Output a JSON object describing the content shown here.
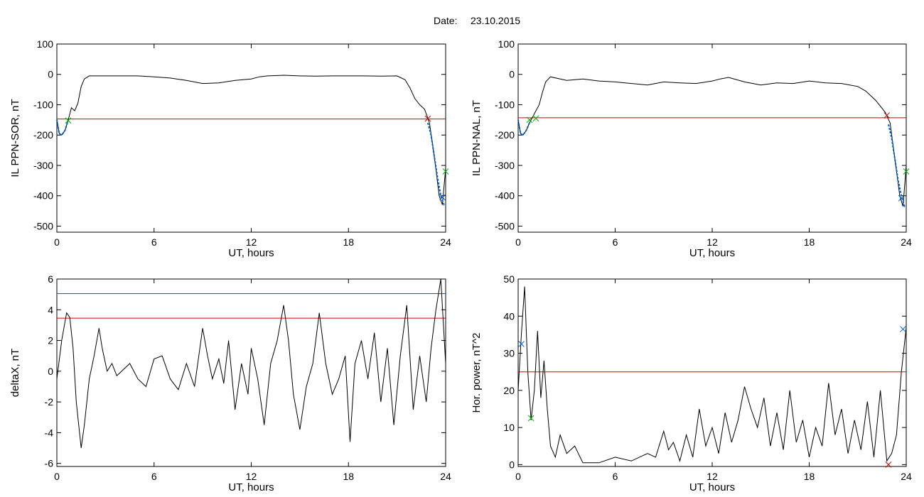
{
  "header": {
    "date_label": "Date:",
    "date_value": "23.10.2015"
  },
  "chart_data": [
    {
      "id": "ppn-sor",
      "type": "line",
      "xlabel": "UT, hours",
      "ylabel": "IL PPN-SOR, nT",
      "xlim": [
        0,
        24
      ],
      "ylim": [
        -520,
        100
      ],
      "xticks": [
        0,
        6,
        12,
        18,
        24
      ],
      "yticks": [
        100,
        0,
        -100,
        -200,
        -300,
        -400,
        -500
      ],
      "grid": false,
      "series_color": "#000000",
      "x": [
        0,
        0.15,
        0.3,
        0.5,
        0.7,
        0.9,
        1.1,
        1.3,
        1.5,
        1.7,
        2,
        3,
        4,
        5,
        6,
        7,
        8,
        9,
        10,
        11,
        12,
        12.5,
        13,
        14,
        15,
        16,
        17,
        18,
        19,
        20,
        21,
        21.5,
        21.8,
        22.1,
        22.4,
        22.7,
        23,
        23.3,
        23.6,
        23.8,
        24
      ],
      "values": [
        -150,
        -195,
        -200,
        -185,
        -150,
        -110,
        -120,
        -95,
        -40,
        -15,
        -5,
        -5,
        -5,
        -5,
        -8,
        -12,
        -20,
        -30,
        -28,
        -20,
        -15,
        -8,
        -5,
        -3,
        -5,
        -6,
        -5,
        -5,
        -5,
        -6,
        -5,
        -18,
        -45,
        -80,
        -100,
        -115,
        -160,
        -270,
        -400,
        -430,
        -310
      ],
      "hlines": [
        {
          "y": -147,
          "color": "#d00000"
        }
      ],
      "overlay": {
        "color": "#0060d0",
        "x": [
          0,
          0.15,
          0.3,
          0.5,
          0.7
        ],
        "values": [
          -150,
          -195,
          -200,
          -185,
          -150
        ]
      },
      "overlay2": {
        "color": "#0060d0",
        "x": [
          22.9,
          23.1,
          23.3,
          23.5,
          23.7,
          23.9,
          24
        ],
        "values": [
          -160,
          -200,
          -270,
          -340,
          -400,
          -430,
          -430
        ]
      },
      "markers": [
        {
          "x": 0.7,
          "y": -152,
          "color": "#00b000"
        },
        {
          "x": 22.9,
          "y": -146,
          "color": "#d00000"
        },
        {
          "x": 23.8,
          "y": -405,
          "color": "#0060d0"
        },
        {
          "x": 24,
          "y": -320,
          "color": "#00b000"
        }
      ]
    },
    {
      "id": "ppn-nal",
      "type": "line",
      "xlabel": "UT, hours",
      "ylabel": "IL PPN-NAL, nT",
      "xlim": [
        0,
        24
      ],
      "ylim": [
        -520,
        100
      ],
      "xticks": [
        0,
        6,
        12,
        18,
        24
      ],
      "yticks": [
        100,
        0,
        -100,
        -200,
        -300,
        -400,
        -500
      ],
      "grid": false,
      "series_color": "#000000",
      "x": [
        0,
        0.15,
        0.3,
        0.5,
        0.7,
        0.9,
        1.1,
        1.3,
        1.5,
        1.7,
        2,
        3,
        4,
        5,
        6,
        7,
        8,
        9,
        10,
        11,
        12,
        12.5,
        13,
        14,
        15,
        16,
        17,
        18,
        19,
        20,
        21,
        21.5,
        21.8,
        22.1,
        22.4,
        22.7,
        23,
        23.3,
        23.6,
        23.8,
        24
      ],
      "values": [
        -150,
        -195,
        -200,
        -185,
        -160,
        -140,
        -120,
        -100,
        -60,
        -25,
        -8,
        -20,
        -15,
        -22,
        -25,
        -30,
        -35,
        -25,
        -28,
        -30,
        -22,
        -15,
        -10,
        -25,
        -35,
        -28,
        -30,
        -22,
        -28,
        -30,
        -40,
        -55,
        -70,
        -85,
        -105,
        -125,
        -160,
        -280,
        -400,
        -435,
        -300
      ],
      "hlines": [
        {
          "y": -143,
          "color": "#d00000"
        }
      ],
      "overlay": {
        "color": "#0060d0",
        "x": [
          0,
          0.15,
          0.3,
          0.5,
          0.7
        ],
        "values": [
          -150,
          -195,
          -200,
          -185,
          -160
        ]
      },
      "overlay2": {
        "color": "#0060d0",
        "x": [
          22.9,
          23.1,
          23.3,
          23.5,
          23.7,
          23.9,
          24
        ],
        "values": [
          -165,
          -210,
          -280,
          -350,
          -400,
          -435,
          -435
        ]
      },
      "markers": [
        {
          "x": 0.7,
          "y": -150,
          "color": "#00b000"
        },
        {
          "x": 1.1,
          "y": -145,
          "color": "#00b000"
        },
        {
          "x": 22.8,
          "y": -135,
          "color": "#d00000"
        },
        {
          "x": 23.7,
          "y": -408,
          "color": "#0060d0"
        },
        {
          "x": 24,
          "y": -320,
          "color": "#00b000"
        }
      ]
    },
    {
      "id": "deltax",
      "type": "line",
      "xlabel": "UT, hours",
      "ylabel": "deltaX, nT",
      "xlim": [
        0,
        24
      ],
      "ylim": [
        -6.2,
        6
      ],
      "xticks": [
        0,
        6,
        12,
        18,
        24
      ],
      "yticks": [
        6,
        4,
        2,
        0,
        -2,
        -4,
        -6
      ],
      "grid": false,
      "series_color": "#000000",
      "x": [
        0,
        0.3,
        0.6,
        0.8,
        1.0,
        1.2,
        1.5,
        1.7,
        2.0,
        2.3,
        2.6,
        2.8,
        3.1,
        3.4,
        3.7,
        4.0,
        4.5,
        5.0,
        5.5,
        6.0,
        6.5,
        7.0,
        7.5,
        8.0,
        8.5,
        9.0,
        9.3,
        9.6,
        10.0,
        10.3,
        10.6,
        11.0,
        11.4,
        11.8,
        12.0,
        12.4,
        12.8,
        13.2,
        13.6,
        14.0,
        14.3,
        14.6,
        15.0,
        15.4,
        15.8,
        16.2,
        16.6,
        17.0,
        17.4,
        17.8,
        18.1,
        18.4,
        18.8,
        19.2,
        19.6,
        20.0,
        20.4,
        20.8,
        21.2,
        21.6,
        22.0,
        22.4,
        22.8,
        23.1,
        23.4,
        23.7,
        24.0
      ],
      "values": [
        -0.5,
        2.0,
        3.8,
        3.5,
        1.5,
        -2.0,
        -5.0,
        -3.5,
        -0.5,
        1.0,
        2.8,
        1.5,
        0.0,
        0.5,
        -0.3,
        0.0,
        0.5,
        -0.5,
        -1.0,
        0.8,
        1.0,
        -0.5,
        -1.2,
        0.5,
        -1.0,
        2.8,
        1.0,
        -0.5,
        0.8,
        -0.8,
        2.0,
        -2.5,
        0.5,
        -1.5,
        1.5,
        -0.5,
        -3.5,
        0.5,
        2.0,
        4.3,
        2.0,
        -1.5,
        -3.8,
        -1.0,
        0.5,
        3.8,
        0.5,
        -1.5,
        -0.5,
        1.0,
        -4.6,
        0.5,
        2.0,
        -0.5,
        2.5,
        -2.0,
        1.5,
        -3.5,
        1.0,
        4.3,
        -2.5,
        1.0,
        -2.0,
        1.5,
        4.0,
        6.0,
        0.5
      ],
      "hlines": [
        {
          "y": 5.05,
          "color": "#0060d0"
        },
        {
          "y": 3.45,
          "color": "#d00000"
        }
      ],
      "markers": []
    },
    {
      "id": "hor-power",
      "type": "line",
      "xlabel": "UT, hours",
      "ylabel": "Hor. power, nT^2",
      "xlim": [
        0,
        24
      ],
      "ylim": [
        -0.5,
        50
      ],
      "xticks": [
        0,
        6,
        12,
        18,
        24
      ],
      "yticks": [
        50,
        40,
        30,
        20,
        10,
        0
      ],
      "grid": false,
      "series_color": "#000000",
      "x": [
        0,
        0.2,
        0.4,
        0.6,
        0.8,
        1.0,
        1.2,
        1.4,
        1.6,
        1.8,
        2.0,
        2.3,
        2.6,
        3.0,
        3.5,
        4.0,
        5.0,
        6.0,
        7.0,
        8.0,
        8.5,
        9.0,
        9.3,
        9.6,
        10.0,
        10.4,
        10.8,
        11.2,
        11.6,
        12.0,
        12.4,
        12.8,
        13.2,
        13.6,
        14.0,
        14.4,
        14.8,
        15.2,
        15.6,
        16.0,
        16.4,
        16.8,
        17.2,
        17.6,
        18.0,
        18.4,
        18.8,
        19.2,
        19.6,
        20.0,
        20.4,
        20.8,
        21.2,
        21.6,
        22.0,
        22.4,
        22.8,
        23.1,
        23.4,
        23.7,
        24.0
      ],
      "values": [
        20,
        35,
        48,
        25,
        12,
        20,
        36,
        18,
        28,
        15,
        5,
        2,
        8,
        3,
        5,
        0.5,
        0.5,
        2,
        1,
        3,
        2,
        9,
        4,
        6,
        1,
        8,
        2,
        15,
        5,
        10,
        3,
        14,
        6,
        12,
        21,
        15,
        10,
        18,
        5,
        14,
        4,
        20,
        6,
        12,
        2,
        10,
        5,
        22,
        8,
        15,
        3,
        12,
        4,
        17,
        2,
        20,
        1,
        3,
        8,
        25,
        37
      ],
      "hlines": [
        {
          "y": 25,
          "color": "#d00000"
        }
      ],
      "markers": [
        {
          "x": 0.2,
          "y": 32.5,
          "color": "#0060d0"
        },
        {
          "x": 0.8,
          "y": 12.5,
          "color": "#00b000"
        },
        {
          "x": 22.9,
          "y": 0,
          "color": "#d00000"
        },
        {
          "x": 23.8,
          "y": 36.5,
          "color": "#0060d0"
        }
      ]
    }
  ]
}
